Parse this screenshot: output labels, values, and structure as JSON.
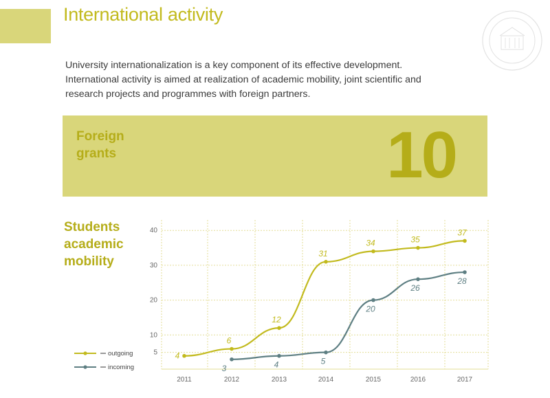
{
  "page": {
    "title": "International activity",
    "intro": "University internationalization is a key component of its effective development. International activity is aimed at realization of academic mobility, joint scientific and research projects and programmes with foreign partners."
  },
  "grants": {
    "label": "Foreign\ngrants",
    "value": "10"
  },
  "colors": {
    "accent": "#c2ba1d",
    "panel": "#d9d67a",
    "outgoing": "#c2ba1d",
    "incoming": "#5e7f83",
    "grid": "#e3de96"
  },
  "icons": {
    "seal": "university-seal-icon"
  },
  "chart_data": {
    "type": "line",
    "title": "Students\nacademic\nmobility",
    "x": [
      "2011",
      "2012",
      "2013",
      "2014",
      "2015",
      "2016",
      "2017"
    ],
    "yticks": [
      5,
      10,
      20,
      30,
      40
    ],
    "ylim": [
      0,
      40
    ],
    "grid": true,
    "legend_position": "bottom-left",
    "series": [
      {
        "name": "outgoing",
        "values": [
          4,
          6,
          12,
          31,
          34,
          35,
          37
        ]
      },
      {
        "name": "incoming",
        "values": [
          null,
          3,
          4,
          5,
          20,
          26,
          28
        ]
      }
    ]
  }
}
